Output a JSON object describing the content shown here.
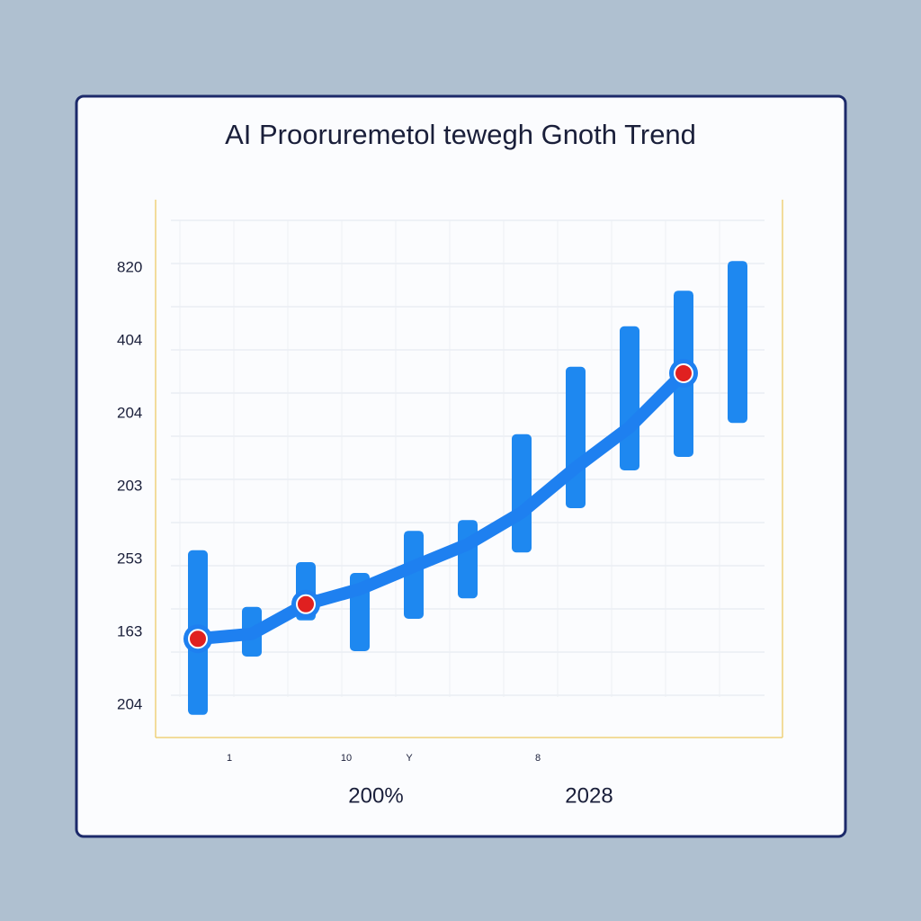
{
  "chart_data": {
    "type": "range-bar-line",
    "title": "AI Prooruremetol tewegh Gnoth Trend",
    "y_labels": [
      "820",
      "404",
      "204",
      "203",
      "253",
      "163",
      "204"
    ],
    "x_small_labels": [
      "1",
      "10",
      "Y",
      "8"
    ],
    "x_labels": [
      "200%",
      "2028"
    ],
    "categories": [
      null,
      null,
      null,
      null,
      null,
      null,
      null,
      null,
      null,
      null,
      null
    ],
    "ylim": [
      0,
      100
    ],
    "grid": true,
    "bars": {
      "color": "#1e88f0",
      "low": [
        4.2,
        15,
        21.7,
        16,
        22,
        25.8,
        34.3,
        42.5,
        49.5,
        52,
        58.3
      ],
      "high": [
        34.7,
        24.2,
        32.5,
        30.5,
        38.3,
        40.3,
        56.2,
        68.7,
        76.2,
        82.8,
        88.3
      ]
    },
    "series": [
      {
        "color": "#1e80f0",
        "values": [
          18.3,
          19.2,
          24.7,
          27.5,
          31.7,
          35.8,
          41.7,
          50,
          57.5,
          67.5,
          null
        ]
      },
      {
        "color": "#e02020",
        "values": [
          18.3,
          null,
          24.7,
          null,
          null,
          null,
          null,
          null,
          null,
          67.5,
          null
        ]
      }
    ]
  }
}
